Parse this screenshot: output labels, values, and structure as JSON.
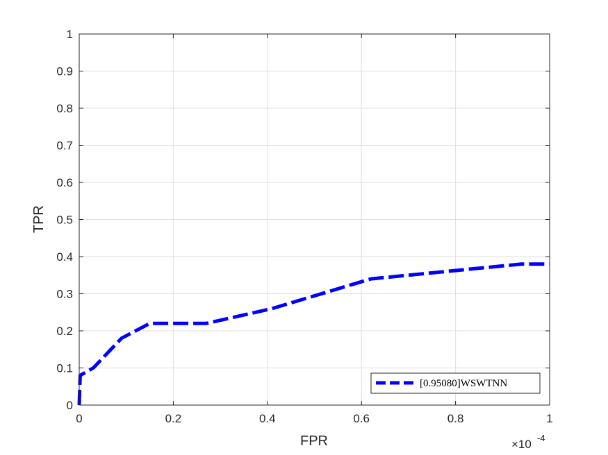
{
  "chart_data": {
    "type": "line",
    "xlabel": "FPR",
    "ylabel": "TPR",
    "x_exponent_label": "×10",
    "x_exponent_power": "-4",
    "xlim": [
      0,
      1
    ],
    "ylim": [
      0,
      1
    ],
    "x_ticks": [
      {
        "value": 0,
        "label": "0"
      },
      {
        "value": 0.2,
        "label": "0.2"
      },
      {
        "value": 0.4,
        "label": "0.4"
      },
      {
        "value": 0.6,
        "label": "0.6"
      },
      {
        "value": 0.8,
        "label": "0.8"
      },
      {
        "value": 1,
        "label": "1"
      }
    ],
    "y_ticks": [
      {
        "value": 0,
        "label": "0"
      },
      {
        "value": 0.1,
        "label": "0.1"
      },
      {
        "value": 0.2,
        "label": "0.2"
      },
      {
        "value": 0.3,
        "label": "0.3"
      },
      {
        "value": 0.4,
        "label": "0.4"
      },
      {
        "value": 0.5,
        "label": "0.5"
      },
      {
        "value": 0.6,
        "label": "0.6"
      },
      {
        "value": 0.7,
        "label": "0.7"
      },
      {
        "value": 0.8,
        "label": "0.8"
      },
      {
        "value": 0.9,
        "label": "0.9"
      },
      {
        "value": 1,
        "label": "1"
      }
    ],
    "grid": true,
    "legend_position": "bottom-right",
    "series": [
      {
        "name": "[0.95080]WSWTNN",
        "color": "#0000ff",
        "line_style": "dashed",
        "x": [
          0,
          0.002,
          0.03,
          0.09,
          0.15,
          0.27,
          0.41,
          0.62,
          0.94,
          1.0
        ],
        "y": [
          0,
          0.08,
          0.1,
          0.18,
          0.22,
          0.22,
          0.26,
          0.34,
          0.38,
          0.38
        ]
      }
    ]
  }
}
